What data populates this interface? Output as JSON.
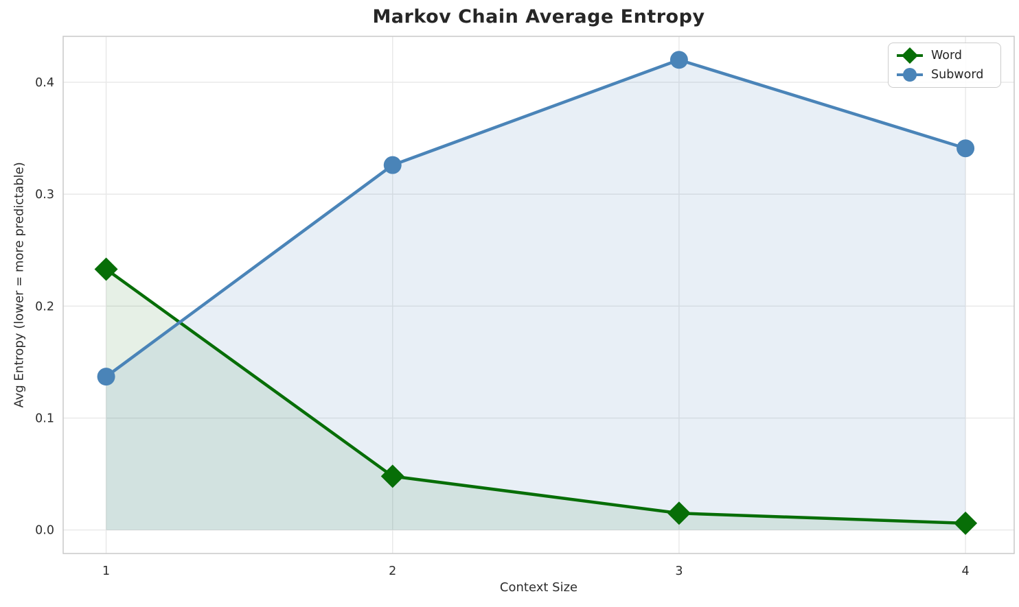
{
  "title": "Markov Chain Average Entropy",
  "chart_data": {
    "type": "line",
    "x": [
      1,
      2,
      3,
      4
    ],
    "x_tick_labels": [
      "1",
      "2",
      "3",
      "4"
    ],
    "y_ticks": [
      0.0,
      0.1,
      0.2,
      0.3,
      0.4
    ],
    "y_tick_labels": [
      "0.0",
      "0.1",
      "0.2",
      "0.3",
      "0.4"
    ],
    "xlabel": "Context Size",
    "ylabel": "Avg Entropy (lower = more predictable)",
    "xlim": [
      0.85,
      4.17
    ],
    "ylim": [
      -0.021,
      0.441
    ],
    "grid": true,
    "area_fill": true,
    "legend_position": "upper right",
    "series": [
      {
        "name": "Word",
        "marker": "diamond",
        "color": "#076e07",
        "fill_opacity": 0.1,
        "values": [
          0.233,
          0.048,
          0.015,
          0.006
        ]
      },
      {
        "name": "Subword",
        "marker": "circle",
        "color": "#4a84b8",
        "fill_opacity": 0.13,
        "values": [
          0.137,
          0.326,
          0.42,
          0.341
        ]
      }
    ]
  },
  "colors": {
    "background": "#ffffff",
    "grid": "#e8e8e8",
    "spine": "#c9c9c9",
    "title_text": "#262626",
    "axis_text": "#2d2d2d"
  }
}
